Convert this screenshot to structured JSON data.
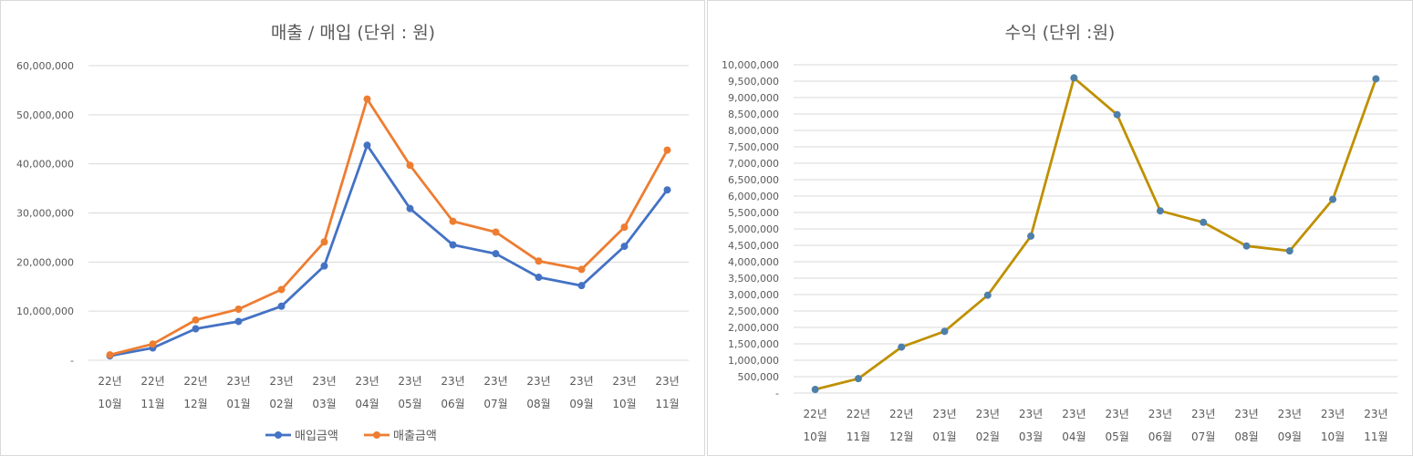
{
  "chart_data": [
    {
      "type": "line",
      "title": "매출 / 매입 (단위 : 원)",
      "categories": [
        [
          "22년",
          "10월"
        ],
        [
          "22년",
          "11월"
        ],
        [
          "22년",
          "12월"
        ],
        [
          "23년",
          "01월"
        ],
        [
          "23년",
          "02월"
        ],
        [
          "23년",
          "03월"
        ],
        [
          "23년",
          "04월"
        ],
        [
          "23년",
          "05월"
        ],
        [
          "23년",
          "06월"
        ],
        [
          "23년",
          "07월"
        ],
        [
          "23년",
          "08월"
        ],
        [
          "23년",
          "09월"
        ],
        [
          "23년",
          "10월"
        ],
        [
          "23년",
          "11월"
        ]
      ],
      "ylim": [
        0,
        60000000
      ],
      "yticks": [
        {
          "value": 0,
          "label": "-"
        },
        {
          "value": 10000000,
          "label": "10,000,000"
        },
        {
          "value": 20000000,
          "label": "20,000,000"
        },
        {
          "value": 30000000,
          "label": "30,000,000"
        },
        {
          "value": 40000000,
          "label": "40,000,000"
        },
        {
          "value": 50000000,
          "label": "50,000,000"
        },
        {
          "value": 60000000,
          "label": "60,000,000"
        }
      ],
      "grid": true,
      "legend": "bottom",
      "series": [
        {
          "name": "매입금액",
          "color": "#4472c4",
          "values": [
            900000,
            2500000,
            6400000,
            7900000,
            11000000,
            19200000,
            43800000,
            30900000,
            23500000,
            21700000,
            16900000,
            15200000,
            23200000,
            34700000
          ]
        },
        {
          "name": "매출금액",
          "color": "#ed7d31",
          "values": [
            1100000,
            3300000,
            8200000,
            10400000,
            14400000,
            24100000,
            53200000,
            39700000,
            28300000,
            26100000,
            20200000,
            18500000,
            27100000,
            42800000
          ]
        }
      ]
    },
    {
      "type": "line",
      "title": "수익 (단위 :원)",
      "categories": [
        [
          "22년",
          "10월"
        ],
        [
          "22년",
          "11월"
        ],
        [
          "22년",
          "12월"
        ],
        [
          "23년",
          "01월"
        ],
        [
          "23년",
          "02월"
        ],
        [
          "23년",
          "03월"
        ],
        [
          "23년",
          "04월"
        ],
        [
          "23년",
          "05월"
        ],
        [
          "23년",
          "06월"
        ],
        [
          "23년",
          "07월"
        ],
        [
          "23년",
          "08월"
        ],
        [
          "23년",
          "09월"
        ],
        [
          "23년",
          "10월"
        ],
        [
          "23년",
          "11월"
        ]
      ],
      "ylim": [
        0,
        10000000
      ],
      "yticks": [
        {
          "value": 0,
          "label": "-"
        },
        {
          "value": 500000,
          "label": "500,000"
        },
        {
          "value": 1000000,
          "label": "1,000,000"
        },
        {
          "value": 1500000,
          "label": "1,500,000"
        },
        {
          "value": 2000000,
          "label": "2,000,000"
        },
        {
          "value": 2500000,
          "label": "2,500,000"
        },
        {
          "value": 3000000,
          "label": "3,000,000"
        },
        {
          "value": 3500000,
          "label": "3,500,000"
        },
        {
          "value": 4000000,
          "label": "4,000,000"
        },
        {
          "value": 4500000,
          "label": "4,500,000"
        },
        {
          "value": 5000000,
          "label": "5,000,000"
        },
        {
          "value": 5500000,
          "label": "5,500,000"
        },
        {
          "value": 6000000,
          "label": "6,000,000"
        },
        {
          "value": 6500000,
          "label": "6,500,000"
        },
        {
          "value": 7000000,
          "label": "7,000,000"
        },
        {
          "value": 7500000,
          "label": "7,500,000"
        },
        {
          "value": 8000000,
          "label": "8,000,000"
        },
        {
          "value": 8500000,
          "label": "8,500,000"
        },
        {
          "value": 9000000,
          "label": "9,000,000"
        },
        {
          "value": 9500000,
          "label": "9,500,000"
        },
        {
          "value": 10000000,
          "label": "10,000,000"
        }
      ],
      "grid": true,
      "series": [
        {
          "color": "#bf9000",
          "marker_color": "#4e7fa8",
          "values": [
            110000,
            440000,
            1400000,
            1880000,
            2980000,
            4780000,
            9600000,
            8480000,
            5550000,
            5200000,
            4480000,
            4330000,
            5900000,
            9570000
          ]
        }
      ]
    }
  ]
}
